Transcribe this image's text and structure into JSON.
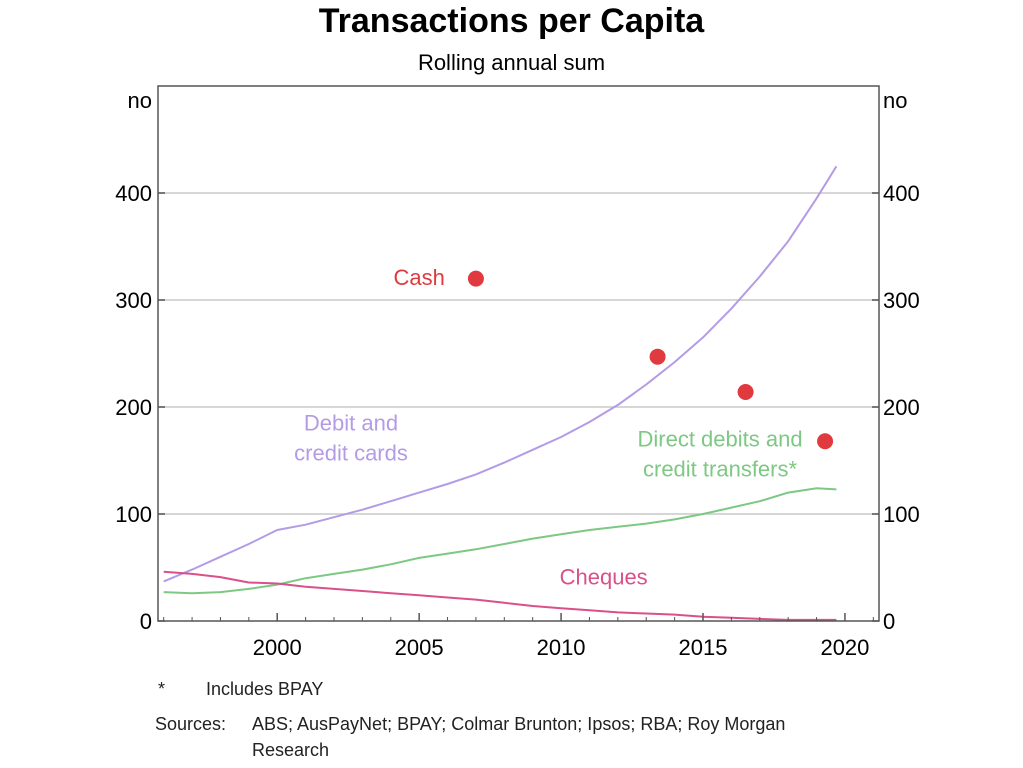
{
  "title": "Transactions per Capita",
  "subtitle": "Rolling annual sum",
  "footnote": {
    "marker": "*",
    "text": "Includes BPAY"
  },
  "sources": {
    "label": "Sources:",
    "text": "ABS; AusPayNet; BPAY; Colmar Brunton; Ipsos; RBA; Roy Morgan Research"
  },
  "colors": {
    "cards": "#b49be6",
    "direct": "#7dc883",
    "cheques": "#d9508a",
    "cash": "#e0393e",
    "gridline": "#c8c8c8",
    "frame": "#555555"
  },
  "chart_data": {
    "type": "line",
    "xlim": [
      1995.8,
      2021.2
    ],
    "ylim": [
      0,
      500
    ],
    "x_ticks": [
      2000,
      2005,
      2010,
      2015,
      2020
    ],
    "x_tick_labels": [
      "2000",
      "2005",
      "2010",
      "2015",
      "2020"
    ],
    "y_ticks": [
      0,
      100,
      200,
      300,
      400
    ],
    "y_tick_labels": [
      "0",
      "100",
      "200",
      "300",
      "400"
    ],
    "ylabel_left": "no",
    "ylabel_right": "no",
    "grid": true,
    "series": [
      {
        "key": "cards",
        "label_lines": [
          "Debit and",
          "credit cards"
        ],
        "points": [
          [
            1996.0,
            37
          ],
          [
            1997.0,
            48
          ],
          [
            1998.0,
            60
          ],
          [
            1999.0,
            72
          ],
          [
            2000.0,
            85
          ],
          [
            2001.0,
            90
          ],
          [
            2002.0,
            97
          ],
          [
            2003.0,
            104
          ],
          [
            2004.0,
            112
          ],
          [
            2005.0,
            120
          ],
          [
            2006.0,
            128
          ],
          [
            2007.0,
            137
          ],
          [
            2008.0,
            148
          ],
          [
            2009.0,
            160
          ],
          [
            2010.0,
            172
          ],
          [
            2011.0,
            186
          ],
          [
            2012.0,
            202
          ],
          [
            2013.0,
            221
          ],
          [
            2014.0,
            242
          ],
          [
            2015.0,
            265
          ],
          [
            2016.0,
            292
          ],
          [
            2017.0,
            322
          ],
          [
            2018.0,
            355
          ],
          [
            2019.0,
            395
          ],
          [
            2019.7,
            425
          ]
        ]
      },
      {
        "key": "direct",
        "label_lines": [
          "Direct debits and",
          "credit transfers*"
        ],
        "points": [
          [
            1996.0,
            27
          ],
          [
            1997.0,
            26
          ],
          [
            1998.0,
            27
          ],
          [
            1999.0,
            30
          ],
          [
            2000.0,
            34
          ],
          [
            2001.0,
            40
          ],
          [
            2002.0,
            44
          ],
          [
            2003.0,
            48
          ],
          [
            2004.0,
            53
          ],
          [
            2005.0,
            59
          ],
          [
            2006.0,
            63
          ],
          [
            2007.0,
            67
          ],
          [
            2008.0,
            72
          ],
          [
            2009.0,
            77
          ],
          [
            2010.0,
            81
          ],
          [
            2011.0,
            85
          ],
          [
            2012.0,
            88
          ],
          [
            2013.0,
            91
          ],
          [
            2014.0,
            95
          ],
          [
            2015.0,
            100
          ],
          [
            2016.0,
            106
          ],
          [
            2017.0,
            112
          ],
          [
            2018.0,
            120
          ],
          [
            2019.0,
            124
          ],
          [
            2019.7,
            123
          ]
        ]
      },
      {
        "key": "cheques",
        "label_lines": [
          "Cheques"
        ],
        "points": [
          [
            1996.0,
            46
          ],
          [
            1997.0,
            44
          ],
          [
            1998.0,
            41
          ],
          [
            1999.0,
            36
          ],
          [
            2000.0,
            35
          ],
          [
            2001.0,
            32
          ],
          [
            2002.0,
            30
          ],
          [
            2003.0,
            28
          ],
          [
            2004.0,
            26
          ],
          [
            2005.0,
            24
          ],
          [
            2006.0,
            22
          ],
          [
            2007.0,
            20
          ],
          [
            2008.0,
            17
          ],
          [
            2009.0,
            14
          ],
          [
            2010.0,
            12
          ],
          [
            2011.0,
            10
          ],
          [
            2012.0,
            8
          ],
          [
            2013.0,
            7
          ],
          [
            2014.0,
            6
          ],
          [
            2015.0,
            4
          ],
          [
            2016.0,
            3
          ],
          [
            2017.0,
            2
          ],
          [
            2018.0,
            1
          ],
          [
            2019.0,
            1
          ],
          [
            2019.7,
            1
          ]
        ]
      },
      {
        "key": "cash",
        "label_lines": [
          "Cash"
        ],
        "type": "scatter",
        "points": [
          [
            2007.0,
            320
          ],
          [
            2013.4,
            247
          ],
          [
            2016.5,
            214
          ],
          [
            2019.3,
            168
          ]
        ]
      }
    ]
  }
}
